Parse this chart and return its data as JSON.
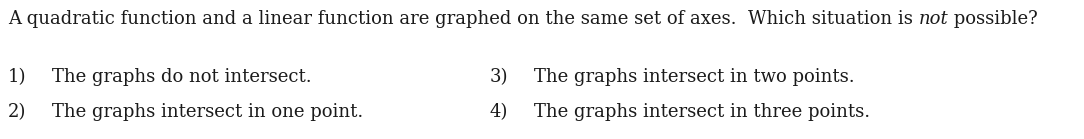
{
  "background_color": "#ffffff",
  "figsize": [
    10.84,
    1.39
  ],
  "dpi": 100,
  "question_part1": "A quadratic function and a linear function are graphed on the same set of axes.  Which situation is ",
  "question_italic": "not",
  "question_part2": " possible?",
  "options": [
    {
      "num": "1)",
      "text": "The graphs do not intersect."
    },
    {
      "num": "2)",
      "text": "The graphs intersect in one point."
    },
    {
      "num": "3)",
      "text": "The graphs intersect in two points."
    },
    {
      "num": "4)",
      "text": "The graphs intersect in three points."
    }
  ],
  "font_size": 13.0,
  "text_color": "#1a1a1a"
}
